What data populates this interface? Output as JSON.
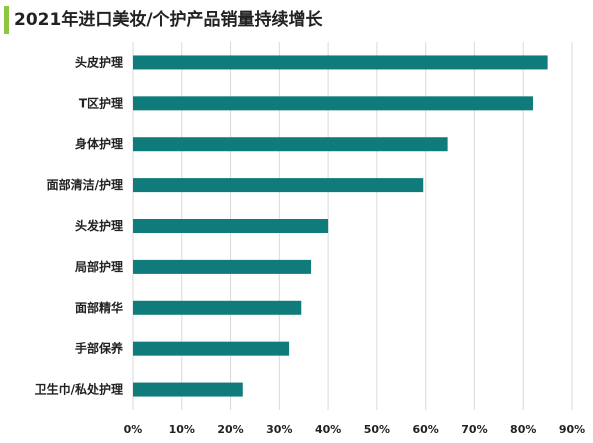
{
  "chart_data": {
    "type": "bar",
    "orientation": "horizontal",
    "title": "2021年进口美妆/个护产品销量持续增长",
    "categories": [
      "头皮护理",
      "T区护理",
      "身体护理",
      "面部清洁/护理",
      "头发护理",
      "局部护理",
      "面部精华",
      "手部保养",
      "卫生巾/私处护理"
    ],
    "values": [
      85,
      82,
      64.5,
      59.5,
      40,
      36.5,
      34.5,
      32,
      22.5
    ],
    "xlim": [
      0,
      90
    ],
    "xticks": [
      "0%",
      "10%",
      "20%",
      "30%",
      "40%",
      "50%",
      "60%",
      "70%",
      "80%",
      "90%"
    ],
    "xlabel": "",
    "ylabel": "",
    "grid": "vertical",
    "legend": "none",
    "bar_color": "#0f7b7b",
    "accent_color": "#8dc63f"
  }
}
